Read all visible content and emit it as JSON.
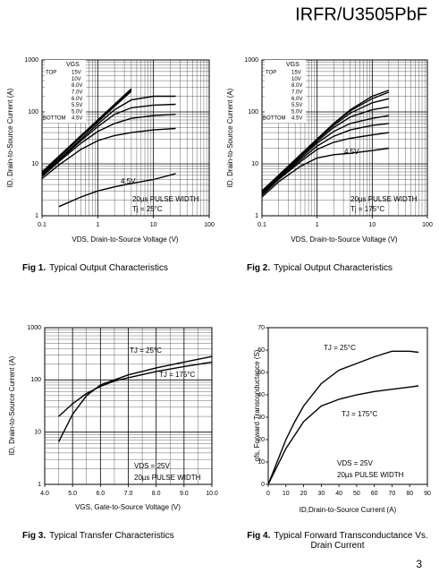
{
  "header": {
    "title": "IRFR/U3505PbF"
  },
  "page_number": "3",
  "chart_data": [
    {
      "type": "line",
      "figure_label": "Fig 1.",
      "caption": "Typical Output Characteristics",
      "xlabel": "VDS, Drain-to-Source Voltage (V)",
      "ylabel": "ID, Drain-to-Source Current (A)",
      "xlog": true,
      "ylog": true,
      "grid": true,
      "minor_grid": true,
      "color": "#000000",
      "xlim": [
        0.1,
        100
      ],
      "ylim": [
        1,
        1000
      ],
      "xticks": [
        0.1,
        1,
        10,
        100
      ],
      "yticks": [
        1,
        10,
        100,
        1000
      ],
      "legend_title": "VGS",
      "legend_top": "TOP",
      "legend_bottom": "BOTTOM",
      "annotations": [
        "4.5V",
        "20µs PULSE WIDTH",
        "Tj = 25°C"
      ],
      "x": [
        0.1,
        0.2,
        0.5,
        1,
        2,
        4,
        10,
        25
      ],
      "series": [
        {
          "name": "15V",
          "values": [
            7,
            14,
            35,
            70,
            140,
            280,
            null,
            null
          ]
        },
        {
          "name": "10V",
          "values": [
            6.8,
            13.5,
            34,
            67,
            135,
            270,
            null,
            null
          ]
        },
        {
          "name": "8.0V",
          "values": [
            6.6,
            13,
            33,
            64,
            128,
            250,
            null,
            null
          ]
        },
        {
          "name": "7.0V",
          "values": [
            6.3,
            12,
            30,
            58,
            110,
            170,
            200,
            200
          ]
        },
        {
          "name": "6.0V",
          "values": [
            6,
            11.5,
            28,
            52,
            90,
            120,
            135,
            140
          ]
        },
        {
          "name": "5.5V",
          "values": [
            5.7,
            11,
            25,
            42,
            60,
            75,
            85,
            90
          ]
        },
        {
          "name": "5.0V",
          "values": [
            5.2,
            9.5,
            19,
            28,
            35,
            40,
            45,
            48
          ]
        },
        {
          "name": "4.5V",
          "values": [
            null,
            1.5,
            2.3,
            3,
            3.6,
            4.2,
            5,
            6.5
          ]
        }
      ]
    },
    {
      "type": "line",
      "figure_label": "Fig 2.",
      "caption": "Typical Output Characteristics",
      "xlabel": "VDS, Drain-to-Source Voltage (V)",
      "ylabel": "ID, Drain-to-Source Current (A)",
      "xlog": true,
      "ylog": true,
      "grid": true,
      "minor_grid": true,
      "color": "#000000",
      "xlim": [
        0.1,
        100
      ],
      "ylim": [
        1,
        1000
      ],
      "xticks": [
        0.1,
        1,
        10,
        100
      ],
      "yticks": [
        1,
        10,
        100,
        1000
      ],
      "legend_title": "VGS",
      "legend_top": "TOP",
      "legend_bottom": "BOTTOM",
      "annotations": [
        "4.5V",
        "20µs PULSE WIDTH",
        "Tj = 175°C"
      ],
      "x": [
        0.1,
        0.2,
        0.5,
        1,
        2,
        4,
        10,
        20
      ],
      "series": [
        {
          "name": "15V",
          "values": [
            3,
            6,
            15,
            30,
            60,
            110,
            200,
            260
          ]
        },
        {
          "name": "10V",
          "values": [
            3,
            6,
            15,
            30,
            59,
            105,
            180,
            240
          ]
        },
        {
          "name": "8.0V",
          "values": [
            2.9,
            5.8,
            14,
            29,
            55,
            95,
            150,
            180
          ]
        },
        {
          "name": "7.0V",
          "values": [
            2.8,
            5.6,
            14,
            27,
            50,
            80,
            110,
            125
          ]
        },
        {
          "name": "6.0V",
          "values": [
            2.7,
            5.4,
            13,
            25,
            42,
            60,
            75,
            85
          ]
        },
        {
          "name": "5.5V",
          "values": [
            2.6,
            5.2,
            12,
            22,
            34,
            45,
            55,
            60
          ]
        },
        {
          "name": "5.0V",
          "values": [
            2.5,
            5,
            11,
            19,
            26,
            31,
            36,
            40
          ]
        },
        {
          "name": "4.5V",
          "values": [
            2.3,
            4.5,
            9,
            13,
            15,
            16,
            18,
            20
          ]
        }
      ]
    },
    {
      "type": "line",
      "figure_label": "Fig 3.",
      "caption": "Typical Transfer Characteristics",
      "xlabel": "VGS, Gate-to-Source Voltage (V)",
      "ylabel": "ID, Drain-to-Source Current (A)",
      "xlog": false,
      "ylog": true,
      "grid": true,
      "minor_grid": true,
      "color": "#000000",
      "xlim": [
        4,
        10
      ],
      "ylim": [
        1,
        1000
      ],
      "xticks": [
        {
          "value": 4,
          "label": "4.0"
        },
        {
          "value": 5,
          "label": "5.0"
        },
        {
          "value": 6,
          "label": "6.0"
        },
        {
          "value": 7,
          "label": "7.0"
        },
        {
          "value": 8,
          "label": "8.0"
        },
        {
          "value": 9,
          "label": "9.0"
        },
        {
          "value": 10,
          "label": "10.0"
        }
      ],
      "yticks": [
        1,
        10,
        100,
        1000
      ],
      "annotations": [
        "VDS = 25V",
        "20µs PULSE WIDTH"
      ],
      "x": [
        4.5,
        5,
        5.5,
        6,
        6.5,
        7,
        8,
        9,
        10
      ],
      "series": [
        {
          "name": "TJ = 25°C",
          "values": [
            6.5,
            22,
            50,
            80,
            100,
            125,
            170,
            220,
            280
          ]
        },
        {
          "name": "TJ = 175°C",
          "values": [
            20,
            35,
            55,
            75,
            95,
            110,
            145,
            180,
            220
          ]
        }
      ]
    },
    {
      "type": "line",
      "figure_label": "Fig 4.",
      "caption": "Typical Forward Transconductance Vs. Drain Current",
      "xlabel": "ID,Drain-to-Source Current (A)",
      "ylabel": "gfs, Forward Transconductance (S)",
      "xlog": false,
      "ylog": false,
      "grid": false,
      "color": "#000000",
      "xlim": [
        0,
        90
      ],
      "ylim": [
        0,
        70
      ],
      "xticks": [
        0,
        10,
        20,
        30,
        40,
        50,
        60,
        70,
        80,
        90
      ],
      "yticks": [
        0,
        10,
        20,
        30,
        40,
        50,
        60,
        70
      ],
      "annotations": [
        "VDS = 25V",
        "20µs PULSE WIDTH"
      ],
      "x": [
        0,
        5,
        10,
        15,
        20,
        30,
        40,
        50,
        60,
        70,
        80,
        85
      ],
      "series": [
        {
          "name": "TJ = 25°C",
          "values": [
            0,
            10,
            20,
            28,
            35,
            45,
            51,
            54,
            57,
            59.5,
            59.5,
            59
          ]
        },
        {
          "name": "TJ = 175°C",
          "values": [
            0,
            8,
            16,
            22,
            28,
            35,
            38,
            40,
            41.5,
            42.5,
            43.5,
            44
          ]
        }
      ]
    }
  ]
}
